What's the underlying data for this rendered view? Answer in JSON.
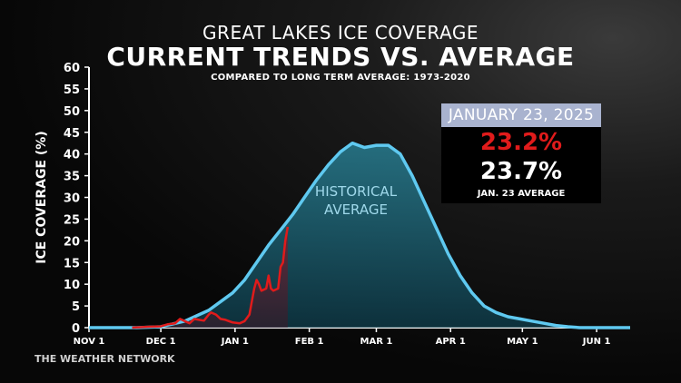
{
  "chart_data": {
    "type": "area",
    "title": "GREAT LAKES ICE COVERAGE",
    "heading": "CURRENT TRENDS VS. AVERAGE",
    "subtitle": "COMPARED TO LONG TERM AVERAGE: 1973-2020",
    "ylabel": "ICE COVERAGE (%)",
    "xlabel": "",
    "ylim": [
      0,
      60
    ],
    "yticks": [
      0,
      5,
      10,
      15,
      20,
      25,
      30,
      35,
      40,
      45,
      50,
      55,
      60
    ],
    "xticks": [
      {
        "label": "NOV 1",
        "day": 0
      },
      {
        "label": "DEC 1",
        "day": 30
      },
      {
        "label": "JAN 1",
        "day": 61
      },
      {
        "label": "FEB 1",
        "day": 92
      },
      {
        "label": "MAR 1",
        "day": 120
      },
      {
        "label": "APR 1",
        "day": 151
      },
      {
        "label": "MAY 1",
        "day": 181
      },
      {
        "label": "JUN 1",
        "day": 212
      }
    ],
    "xlim": [
      0,
      226
    ],
    "area_label": "HISTORICAL\nAVERAGE",
    "series": [
      {
        "name": "",
        "role": "historical-average",
        "color": "#5fc9f0",
        "points": [
          [
            0,
            0
          ],
          [
            20,
            0
          ],
          [
            30,
            0.2
          ],
          [
            40,
            1.5
          ],
          [
            50,
            4
          ],
          [
            55,
            6
          ],
          [
            60,
            8
          ],
          [
            65,
            11
          ],
          [
            70,
            15
          ],
          [
            75,
            19
          ],
          [
            80,
            22.5
          ],
          [
            85,
            26
          ],
          [
            90,
            30
          ],
          [
            95,
            34
          ],
          [
            100,
            37.5
          ],
          [
            105,
            40.5
          ],
          [
            110,
            42.5
          ],
          [
            115,
            41.5
          ],
          [
            120,
            42
          ],
          [
            125,
            42
          ],
          [
            130,
            40
          ],
          [
            135,
            35
          ],
          [
            140,
            29
          ],
          [
            145,
            23
          ],
          [
            150,
            17
          ],
          [
            155,
            12
          ],
          [
            160,
            8
          ],
          [
            165,
            5
          ],
          [
            170,
            3.5
          ],
          [
            175,
            2.5
          ],
          [
            180,
            2
          ],
          [
            185,
            1.5
          ],
          [
            190,
            1
          ],
          [
            195,
            0.5
          ],
          [
            200,
            0.2
          ],
          [
            205,
            0
          ],
          [
            226,
            0
          ]
        ]
      },
      {
        "name": "",
        "role": "current-season",
        "color": "#e01b1b",
        "points": [
          [
            18,
            0
          ],
          [
            25,
            0.2
          ],
          [
            30,
            0.3
          ],
          [
            33,
            0.8
          ],
          [
            36,
            1
          ],
          [
            38,
            2
          ],
          [
            40,
            1.5
          ],
          [
            42,
            1
          ],
          [
            44,
            2
          ],
          [
            46,
            1.8
          ],
          [
            48,
            1.6
          ],
          [
            50,
            3
          ],
          [
            51,
            3.5
          ],
          [
            53,
            3
          ],
          [
            55,
            2
          ],
          [
            57,
            1.8
          ],
          [
            60,
            1.2
          ],
          [
            63,
            1
          ],
          [
            65,
            1.5
          ],
          [
            67,
            3
          ],
          [
            68,
            6
          ],
          [
            69,
            9
          ],
          [
            70,
            11
          ],
          [
            71,
            10
          ],
          [
            72,
            8.5
          ],
          [
            74,
            9
          ],
          [
            75,
            12
          ],
          [
            76,
            9
          ],
          [
            77,
            8.5
          ],
          [
            79,
            9
          ],
          [
            80,
            14
          ],
          [
            81,
            15
          ],
          [
            82,
            20
          ],
          [
            83,
            23.2
          ]
        ]
      }
    ],
    "grid": false,
    "legend": "none"
  },
  "info": {
    "date": "JANUARY 23, 2025",
    "current_value": "23.2%",
    "average_value": "23.7%",
    "average_label": "JAN. 23 AVERAGE"
  },
  "source": "THE WEATHER NETWORK",
  "colors": {
    "average_line": "#5fc9f0",
    "current_line": "#e01b1b",
    "date_banner": "#a9b3cf"
  }
}
